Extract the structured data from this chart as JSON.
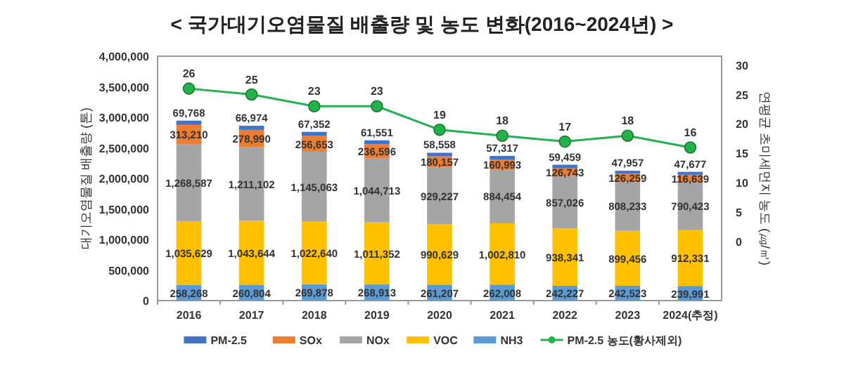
{
  "chart_data": {
    "type": "bar",
    "stacked": true,
    "title": "< 국가대기오염물질 배출량 및 농도 변화(2016~2024년) >",
    "ylabel": "대기오염물질 배출량 (톤)",
    "y2label": "연평균 초미세먼지 농도 (㎍/㎥)",
    "categories": [
      "2016",
      "2017",
      "2018",
      "2019",
      "2020",
      "2021",
      "2022",
      "2023",
      "2024(추정)"
    ],
    "series": [
      {
        "name": "NH3",
        "color": "#5b9bd5",
        "values": [
          258268,
          260804,
          269878,
          268913,
          261207,
          262008,
          242227,
          242523,
          239991
        ],
        "value_labels": [
          "258,268",
          "260,804",
          "269,878",
          "268,913",
          "261,207",
          "262,008",
          "242,227",
          "242,523",
          "239,991"
        ]
      },
      {
        "name": "VOC",
        "color": "#ffc000",
        "values": [
          1035629,
          1043644,
          1022640,
          1011352,
          990629,
          1002810,
          938341,
          899456,
          912331
        ],
        "value_labels": [
          "1,035,629",
          "1,043,644",
          "1,022,640",
          "1,011,352",
          "990,629",
          "1,002,810",
          "938,341",
          "899,456",
          "912,331"
        ]
      },
      {
        "name": "NOx",
        "color": "#a5a5a5",
        "values": [
          1268587,
          1211102,
          1145063,
          1044713,
          929227,
          884454,
          857026,
          808233,
          790423
        ],
        "value_labels": [
          "1,268,587",
          "1,211,102",
          "1,145,063",
          "1,044,713",
          "929,227",
          "884,454",
          "857,026",
          "808,233",
          "790,423"
        ]
      },
      {
        "name": "SOx",
        "color": "#ed7d31",
        "values": [
          313210,
          278990,
          256653,
          236596,
          180157,
          160993,
          126743,
          126259,
          116639
        ],
        "value_labels": [
          "313,210",
          "278,990",
          "256,653",
          "236,596",
          "180,157",
          "160,993",
          "126,743",
          "126,259",
          "116,639"
        ]
      },
      {
        "name": "PM-2.5",
        "color": "#4472c4",
        "values": [
          69768,
          66974,
          67352,
          61551,
          58558,
          57317,
          59459,
          47957,
          47677
        ],
        "value_labels": [
          "69,768",
          "66,974",
          "67,352",
          "61,551",
          "58,558",
          "57,317",
          "59,459",
          "47,957",
          "47,677"
        ]
      },
      {
        "name": "PM-2.5 농도(황사제외)",
        "type": "line",
        "axis": "y2",
        "color": "#22b14c",
        "marker": "circle",
        "values": [
          26,
          25,
          23,
          23,
          19,
          18,
          17,
          18,
          16
        ],
        "value_labels": [
          "26",
          "25",
          "23",
          "23",
          "19",
          "18",
          "17",
          "18",
          "16"
        ]
      }
    ],
    "ylim": [
      0,
      4000000
    ],
    "yticks": [
      {
        "value": 0,
        "label": "0"
      },
      {
        "value": 500000,
        "label": "500,000"
      },
      {
        "value": 1000000,
        "label": "1,000,000"
      },
      {
        "value": 1500000,
        "label": "1,500,000"
      },
      {
        "value": 2000000,
        "label": "2,000,000"
      },
      {
        "value": 2500000,
        "label": "2,500,000"
      },
      {
        "value": 3000000,
        "label": "3,000,000"
      },
      {
        "value": 3500000,
        "label": "3,500,000"
      },
      {
        "value": 4000000,
        "label": "4,000,000"
      }
    ],
    "y2lim": [
      -10,
      31.5
    ],
    "y2ticks": [
      0,
      5,
      10,
      15,
      20,
      25,
      30
    ],
    "legend": "bottom"
  }
}
